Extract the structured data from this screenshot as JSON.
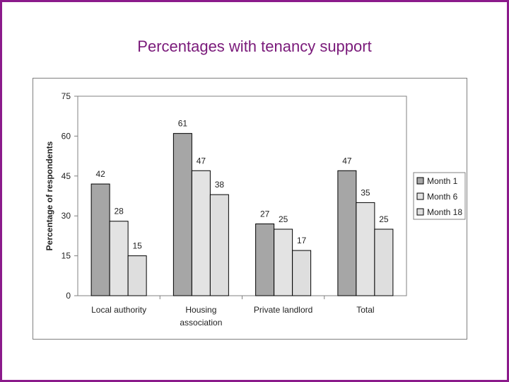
{
  "slide": {
    "title": "Percentages with tenancy support"
  },
  "chart_data": {
    "type": "bar",
    "title": "",
    "xlabel": "",
    "ylabel": "Percentage of respondents",
    "ylim": [
      0,
      75
    ],
    "yticks": [
      0,
      15,
      30,
      45,
      60,
      75
    ],
    "grid": false,
    "legend_position": "right",
    "categories": [
      [
        "Local authority"
      ],
      [
        "Housing",
        "association"
      ],
      [
        "Private landlord"
      ],
      [
        "Total"
      ]
    ],
    "series": [
      {
        "name": "Month 1",
        "color": "#a6a6a6",
        "values": [
          42,
          61,
          27,
          47
        ]
      },
      {
        "name": "Month 6",
        "color": "#e3e3e3",
        "values": [
          28,
          47,
          25,
          35
        ]
      },
      {
        "name": "Month 18",
        "color": "#dedede",
        "values": [
          15,
          38,
          17,
          25
        ]
      }
    ]
  }
}
